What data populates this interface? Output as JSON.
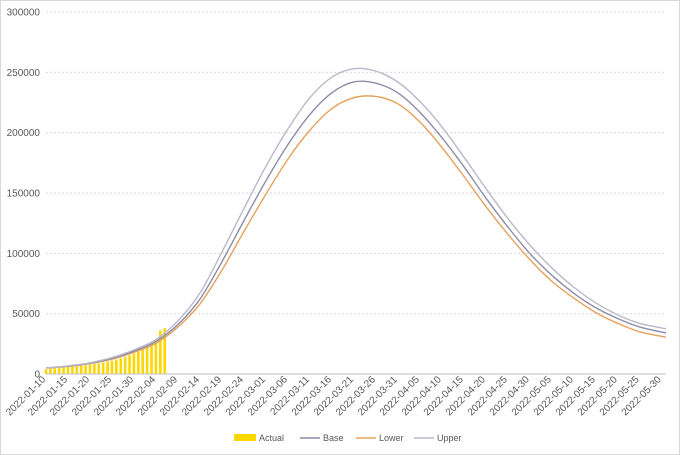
{
  "chart_data": {
    "type": "line",
    "title": "",
    "xlabel": "",
    "ylabel": "",
    "ylim": [
      0,
      300000
    ],
    "y_ticks": [
      "0",
      "50000",
      "100000",
      "150000",
      "200000",
      "250000",
      "300000"
    ],
    "x_range": [
      "2022-01-10",
      "2022-05-31"
    ],
    "x_tick_labels": [
      "2022-01-10",
      "2022-01-15",
      "2022-01-20",
      "2022-01-25",
      "2022-01-30",
      "2022-02-04",
      "2022-02-09",
      "2022-02-14",
      "2022-02-19",
      "2022-02-24",
      "2022-03-01",
      "2022-03-06",
      "2022-03-11",
      "2022-03-16",
      "2022-03-21",
      "2022-03-26",
      "2022-03-31",
      "2022-04-05",
      "2022-04-10",
      "2022-04-15",
      "2022-04-20",
      "2022-04-25",
      "2022-04-30",
      "2022-05-05",
      "2022-05-10",
      "2022-05-15",
      "2022-05-20",
      "2022-05-25",
      "2022-05-30"
    ],
    "grid": "horizontal",
    "legend_position": "bottom",
    "series": [
      {
        "name": "Actual",
        "kind": "bar",
        "color": "#ffd700",
        "dates": [
          "2022-01-10",
          "2022-01-11",
          "2022-01-12",
          "2022-01-13",
          "2022-01-14",
          "2022-01-15",
          "2022-01-16",
          "2022-01-17",
          "2022-01-18",
          "2022-01-19",
          "2022-01-20",
          "2022-01-21",
          "2022-01-22",
          "2022-01-23",
          "2022-01-24",
          "2022-01-25",
          "2022-01-26",
          "2022-01-27",
          "2022-01-28",
          "2022-01-29",
          "2022-01-30",
          "2022-01-31",
          "2022-02-01",
          "2022-02-02",
          "2022-02-03",
          "2022-02-04",
          "2022-02-05",
          "2022-02-06"
        ],
        "values": [
          4000,
          4600,
          5300,
          5400,
          5600,
          5900,
          6200,
          6500,
          6900,
          7300,
          7800,
          8300,
          8900,
          9500,
          10200,
          11000,
          12000,
          13000,
          14200,
          15500,
          17000,
          18500,
          20000,
          22000,
          25000,
          28500,
          36000,
          38000
        ]
      },
      {
        "name": "Base",
        "kind": "line",
        "color": "#8c8ca8",
        "dates": [
          "2022-01-10",
          "2022-01-15",
          "2022-01-20",
          "2022-01-25",
          "2022-01-30",
          "2022-02-04",
          "2022-02-09",
          "2022-02-14",
          "2022-02-19",
          "2022-02-24",
          "2022-03-01",
          "2022-03-06",
          "2022-03-11",
          "2022-03-16",
          "2022-03-21",
          "2022-03-26",
          "2022-03-31",
          "2022-04-05",
          "2022-04-10",
          "2022-04-15",
          "2022-04-20",
          "2022-04-25",
          "2022-04-30",
          "2022-05-05",
          "2022-05-10",
          "2022-05-15",
          "2022-05-20",
          "2022-05-25",
          "2022-05-31"
        ],
        "values": [
          5000,
          6500,
          9000,
          13000,
          19000,
          27000,
          41000,
          62000,
          93000,
          127000,
          160000,
          190000,
          215000,
          233000,
          242000,
          241000,
          233000,
          217000,
          196000,
          172000,
          146000,
          122000,
          100000,
          82000,
          67000,
          55000,
          46000,
          39000,
          34000
        ]
      },
      {
        "name": "Lower",
        "kind": "line",
        "color": "#e6a15c",
        "dates": [
          "2022-01-10",
          "2022-01-15",
          "2022-01-20",
          "2022-01-25",
          "2022-01-30",
          "2022-02-04",
          "2022-02-09",
          "2022-02-14",
          "2022-02-19",
          "2022-02-24",
          "2022-03-01",
          "2022-03-06",
          "2022-03-11",
          "2022-03-16",
          "2022-03-21",
          "2022-03-26",
          "2022-03-31",
          "2022-04-05",
          "2022-04-10",
          "2022-04-15",
          "2022-04-20",
          "2022-04-25",
          "2022-04-30",
          "2022-05-05",
          "2022-05-10",
          "2022-05-15",
          "2022-05-20",
          "2022-05-25",
          "2022-05-31"
        ],
        "values": [
          5000,
          6300,
          8600,
          12300,
          18000,
          25500,
          39000,
          58000,
          86000,
          118000,
          149000,
          178000,
          202000,
          220000,
          229000,
          230000,
          224000,
          209000,
          188000,
          164000,
          139000,
          116000,
          95000,
          77000,
          63000,
          51000,
          42000,
          35000,
          30500
        ]
      },
      {
        "name": "Upper",
        "kind": "line",
        "color": "#b9b9cc",
        "dates": [
          "2022-01-10",
          "2022-01-15",
          "2022-01-20",
          "2022-01-25",
          "2022-01-30",
          "2022-02-04",
          "2022-02-09",
          "2022-02-14",
          "2022-02-19",
          "2022-02-24",
          "2022-03-01",
          "2022-03-06",
          "2022-03-11",
          "2022-03-16",
          "2022-03-21",
          "2022-03-26",
          "2022-03-31",
          "2022-04-05",
          "2022-04-10",
          "2022-04-15",
          "2022-04-20",
          "2022-04-25",
          "2022-04-30",
          "2022-05-05",
          "2022-05-10",
          "2022-05-15",
          "2022-05-20",
          "2022-05-25",
          "2022-05-31"
        ],
        "values": [
          5000,
          6700,
          9300,
          13600,
          20000,
          28500,
          44000,
          67000,
          101000,
          137000,
          172000,
          203000,
          229000,
          246000,
          253000,
          251000,
          242000,
          226000,
          205000,
          180000,
          154000,
          129000,
          107000,
          88000,
          72000,
          59000,
          49000,
          42000,
          37500
        ]
      }
    ]
  }
}
